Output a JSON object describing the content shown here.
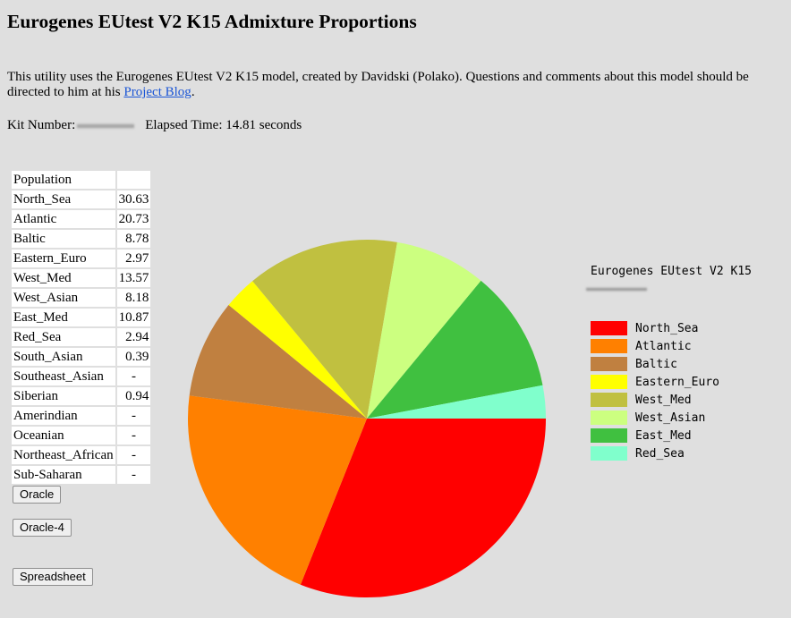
{
  "page": {
    "title": "Eurogenes EUtest V2 K15 Admixture Proportions",
    "intro_text": "This utility uses the Eurogenes EUtest V2 K15 model, created by Davidski (Polako). Questions and comments about this model should be directed to him at his ",
    "intro_link": "Project Blog",
    "intro_end": ".",
    "kit_label": "Kit Number:",
    "kit_value_redacted": true,
    "elapsed": "Elapsed Time: 14.81 seconds"
  },
  "table": {
    "header": "Population",
    "rows": [
      {
        "name": "North_Sea",
        "value": "30.63"
      },
      {
        "name": "Atlantic",
        "value": "20.73"
      },
      {
        "name": "Baltic",
        "value": "8.78"
      },
      {
        "name": "Eastern_Euro",
        "value": "2.97"
      },
      {
        "name": "West_Med",
        "value": "13.57"
      },
      {
        "name": "West_Asian",
        "value": "8.18"
      },
      {
        "name": "East_Med",
        "value": "10.87"
      },
      {
        "name": "Red_Sea",
        "value": "2.94"
      },
      {
        "name": "South_Asian",
        "value": "0.39"
      },
      {
        "name": "Southeast_Asian",
        "value": "-"
      },
      {
        "name": "Siberian",
        "value": "0.94"
      },
      {
        "name": "Amerindian",
        "value": "-"
      },
      {
        "name": "Oceanian",
        "value": "-"
      },
      {
        "name": "Northeast_African",
        "value": "-"
      },
      {
        "name": "Sub-Saharan",
        "value": "-"
      }
    ]
  },
  "buttons": {
    "oracle": "Oracle",
    "oracle4": "Oracle-4",
    "spreadsheet": "Spreadsheet"
  },
  "chart_data": {
    "type": "pie",
    "title": "Eurogenes EUtest V2 K15",
    "subtitle_redacted": true,
    "legend_position": "right",
    "start_angle": "3 o'clock, clockwise",
    "categories": [
      "North_Sea",
      "Atlantic",
      "Baltic",
      "Eastern_Euro",
      "West_Med",
      "West_Asian",
      "East_Med",
      "Red_Sea"
    ],
    "values": [
      30.63,
      20.73,
      8.78,
      2.97,
      13.57,
      8.18,
      10.87,
      2.94
    ],
    "colors": [
      "#ff0000",
      "#ff8000",
      "#c08040",
      "#ffff00",
      "#c0c040",
      "#ccff80",
      "#40c040",
      "#80ffcc"
    ]
  }
}
